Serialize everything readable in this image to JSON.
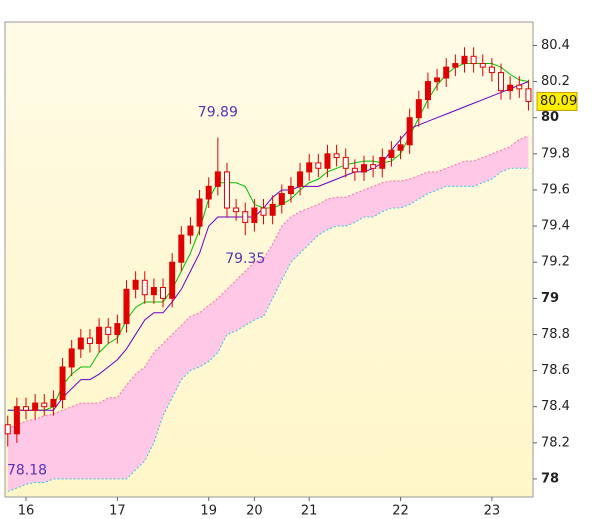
{
  "chart_data": {
    "type": "candlestick",
    "xlim": [
      -0.3,
      57.5
    ],
    "xticks": [
      {
        "value": 2,
        "label": "16"
      },
      {
        "value": 12,
        "label": "17"
      },
      {
        "value": 22,
        "label": "19"
      },
      {
        "value": 27,
        "label": "20"
      },
      {
        "value": 33,
        "label": "21"
      },
      {
        "value": 43,
        "label": "22"
      },
      {
        "value": 53,
        "label": "23"
      }
    ],
    "ylim": [
      77.9,
      80.53
    ],
    "yticks": [
      78,
      78.2,
      78.4,
      78.6,
      78.8,
      79,
      79.2,
      79.4,
      79.6,
      79.8,
      80,
      80.2,
      80.4
    ],
    "open": [
      78.3,
      78.25,
      78.4,
      78.38,
      78.42,
      78.4,
      78.44,
      78.62,
      78.72,
      78.78,
      78.75,
      78.84,
      78.8,
      78.86,
      79.05,
      79.1,
      79.02,
      79.06,
      79.0,
      79.2,
      79.35,
      79.4,
      79.55,
      79.62,
      79.7,
      79.5,
      79.48,
      79.42,
      79.5,
      79.46,
      79.52,
      79.58,
      79.62,
      79.7,
      79.75,
      79.72,
      79.8,
      79.78,
      79.72,
      79.7,
      79.74,
      79.72,
      79.78,
      79.82,
      79.85,
      80.0,
      80.1,
      80.2,
      80.22,
      80.28,
      80.3,
      80.34,
      80.3,
      80.28,
      80.25,
      80.15,
      80.18,
      80.16
    ],
    "high": [
      78.35,
      78.45,
      78.45,
      78.47,
      78.47,
      78.49,
      78.67,
      78.77,
      78.83,
      78.83,
      78.89,
      78.89,
      78.91,
      79.1,
      79.15,
      79.15,
      79.11,
      79.11,
      79.25,
      79.4,
      79.45,
      79.6,
      79.67,
      79.89,
      79.75,
      79.55,
      79.53,
      79.55,
      79.55,
      79.57,
      79.63,
      79.67,
      79.75,
      79.8,
      79.8,
      79.85,
      79.85,
      79.83,
      79.77,
      79.79,
      79.79,
      79.83,
      79.87,
      79.9,
      80.05,
      80.15,
      80.25,
      80.27,
      80.33,
      80.35,
      80.39,
      80.39,
      80.35,
      80.33,
      80.3,
      80.23,
      80.23,
      80.21
    ],
    "low": [
      78.18,
      78.2,
      78.33,
      78.33,
      78.35,
      78.35,
      78.39,
      78.57,
      78.67,
      78.7,
      78.7,
      78.75,
      78.75,
      78.81,
      79.0,
      78.97,
      78.97,
      78.95,
      78.95,
      79.15,
      79.3,
      79.35,
      79.5,
      79.57,
      79.45,
      79.43,
      79.35,
      79.37,
      79.41,
      79.41,
      79.47,
      79.53,
      79.57,
      79.65,
      79.67,
      79.67,
      79.73,
      79.67,
      79.65,
      79.65,
      79.67,
      79.67,
      79.73,
      79.77,
      79.8,
      79.95,
      80.05,
      80.15,
      80.17,
      80.23,
      80.25,
      80.25,
      80.23,
      80.2,
      80.1,
      80.1,
      80.11,
      80.04
    ],
    "close": [
      78.25,
      78.4,
      78.38,
      78.42,
      78.4,
      78.44,
      78.62,
      78.72,
      78.78,
      78.75,
      78.84,
      78.8,
      78.86,
      79.05,
      79.1,
      79.02,
      79.06,
      79.0,
      79.2,
      79.35,
      79.4,
      79.55,
      79.62,
      79.7,
      79.5,
      79.48,
      79.42,
      79.5,
      79.46,
      79.52,
      79.58,
      79.62,
      79.7,
      79.75,
      79.72,
      79.8,
      79.78,
      79.72,
      79.7,
      79.74,
      79.72,
      79.78,
      79.82,
      79.85,
      80.0,
      80.1,
      80.2,
      80.22,
      80.28,
      80.3,
      80.34,
      80.3,
      80.28,
      80.25,
      80.15,
      80.18,
      80.16,
      80.09
    ],
    "candle_color": "#e00000",
    "series": [
      {
        "color": "#00c000",
        "values": [
          78.38,
          78.38,
          78.38,
          78.38,
          78.38,
          78.4,
          78.52,
          78.58,
          78.62,
          78.62,
          78.7,
          78.75,
          78.78,
          78.88,
          78.95,
          78.98,
          78.98,
          78.98,
          79.05,
          79.15,
          79.25,
          79.38,
          79.55,
          79.64,
          79.64,
          79.64,
          79.62,
          79.52,
          79.5,
          79.5,
          79.52,
          79.55,
          79.6,
          79.64,
          79.66,
          79.7,
          79.72,
          79.74,
          79.75,
          79.76,
          79.76,
          79.75,
          79.76,
          79.8,
          79.9,
          80.0,
          80.1,
          80.18,
          80.24,
          80.28,
          80.3,
          80.3,
          80.3,
          80.3,
          80.28,
          80.24,
          80.21,
          80.2
        ]
      },
      {
        "color": "#6a00c8",
        "values": [
          78.38,
          78.38,
          78.38,
          78.38,
          78.38,
          78.38,
          78.45,
          78.5,
          78.55,
          78.55,
          78.58,
          78.62,
          78.66,
          78.72,
          78.8,
          78.88,
          78.92,
          78.92,
          78.98,
          79.05,
          79.15,
          79.25,
          79.4,
          79.45,
          79.45,
          79.45,
          79.45,
          79.45,
          79.5,
          79.56,
          79.6,
          79.6,
          79.62,
          79.62,
          79.62,
          79.64,
          79.66,
          79.68,
          79.7,
          79.7,
          79.72,
          79.75,
          79.82,
          79.88,
          79.94,
          79.96,
          79.98,
          80.0,
          80.02,
          80.04,
          80.06,
          80.08,
          80.1,
          80.12,
          80.14,
          80.16,
          80.18,
          80.2
        ]
      },
      {
        "color": "#ff6fa0",
        "values": [
          78.28,
          78.3,
          78.32,
          78.33,
          78.35,
          78.36,
          78.38,
          78.4,
          78.42,
          78.42,
          78.42,
          78.45,
          78.45,
          78.52,
          78.58,
          78.62,
          78.7,
          78.75,
          78.8,
          78.85,
          78.9,
          78.92,
          78.96,
          79.0,
          79.05,
          79.1,
          79.15,
          79.2,
          79.22,
          79.3,
          79.4,
          79.45,
          79.48,
          79.5,
          79.52,
          79.55,
          79.56,
          79.56,
          79.58,
          79.6,
          79.62,
          79.64,
          79.65,
          79.65,
          79.66,
          79.68,
          79.7,
          79.7,
          79.72,
          79.74,
          79.76,
          79.76,
          79.78,
          79.8,
          79.82,
          79.84,
          79.88,
          79.9
        ]
      },
      {
        "color": "#33c8e8",
        "values": [
          77.93,
          77.95,
          77.97,
          77.98,
          77.98,
          78.0,
          78.0,
          78.0,
          78.0,
          78.0,
          78.0,
          78.0,
          78.0,
          78.0,
          78.05,
          78.1,
          78.2,
          78.35,
          78.45,
          78.55,
          78.6,
          78.62,
          78.65,
          78.7,
          78.8,
          78.82,
          78.85,
          78.88,
          78.9,
          79.0,
          79.1,
          79.2,
          79.25,
          79.3,
          79.35,
          79.38,
          79.4,
          79.4,
          79.42,
          79.45,
          79.45,
          79.48,
          79.5,
          79.5,
          79.52,
          79.55,
          79.58,
          79.6,
          79.62,
          79.62,
          79.62,
          79.62,
          79.64,
          79.66,
          79.7,
          79.72,
          79.72,
          79.72
        ]
      }
    ],
    "annotations": [
      {
        "x": 23,
        "y": 79.89
      },
      {
        "x": 26,
        "y": 79.35
      },
      {
        "x": 0,
        "y": 78.18
      }
    ],
    "last_price": 80.09,
    "last_price_color": "#ffee00"
  }
}
